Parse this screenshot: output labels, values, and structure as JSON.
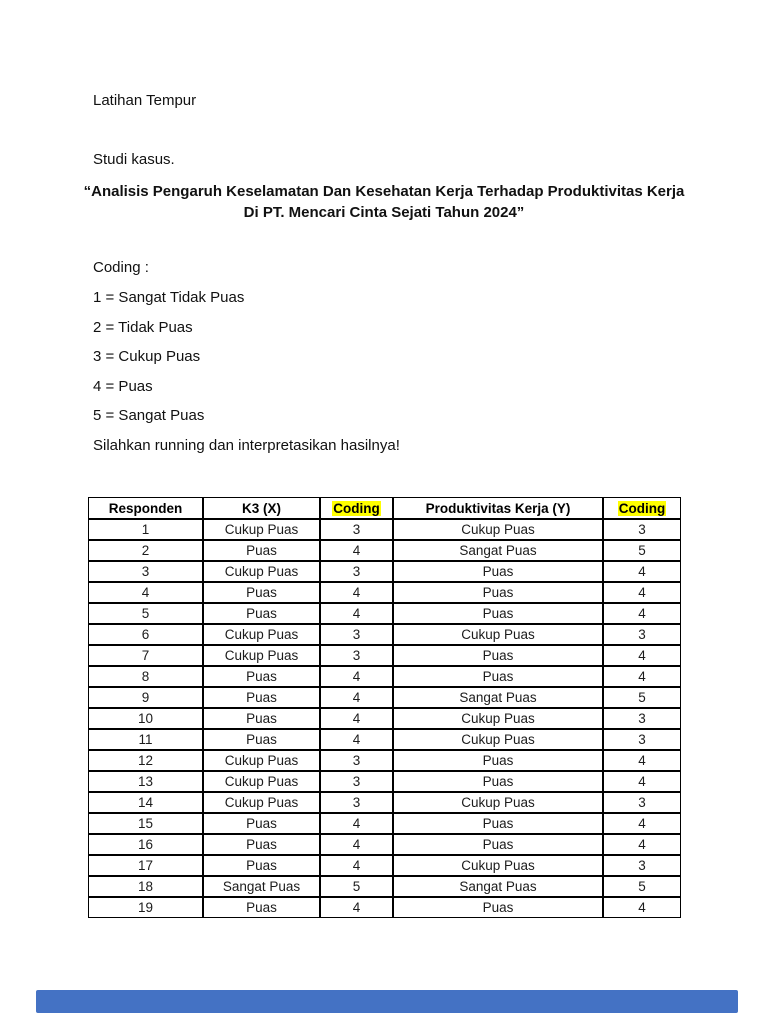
{
  "doc": {
    "heading": "Latihan Tempur",
    "case_study": "Studi kasus.",
    "title": "“Analisis Pengaruh Keselamatan Dan Kesehatan Kerja Terhadap Produktivitas Kerja Di PT. Mencari Cinta Sejati Tahun 2024”",
    "coding_label": "Coding :",
    "coding_items": [
      "1 = Sangat Tidak Puas",
      "2 = Tidak Puas",
      "3 = Cukup Puas",
      "4 = Puas",
      "5 = Sangat Puas"
    ],
    "instruction": "Silahkan running dan interpretasikan hasilnya!"
  },
  "table": {
    "headers": [
      {
        "label": "Responden",
        "highlight": false
      },
      {
        "label": "K3 (X)",
        "highlight": false
      },
      {
        "label": "Coding",
        "highlight": true
      },
      {
        "label": "Produktivitas Kerja (Y)",
        "highlight": false
      },
      {
        "label": "Coding",
        "highlight": true
      }
    ],
    "rows": [
      [
        "1",
        "Cukup Puas",
        "3",
        "Cukup Puas",
        "3"
      ],
      [
        "2",
        "Puas",
        "4",
        "Sangat Puas",
        "5"
      ],
      [
        "3",
        "Cukup Puas",
        "3",
        "Puas",
        "4"
      ],
      [
        "4",
        "Puas",
        "4",
        "Puas",
        "4"
      ],
      [
        "5",
        "Puas",
        "4",
        "Puas",
        "4"
      ],
      [
        "6",
        "Cukup Puas",
        "3",
        "Cukup Puas",
        "3"
      ],
      [
        "7",
        "Cukup Puas",
        "3",
        "Puas",
        "4"
      ],
      [
        "8",
        "Puas",
        "4",
        "Puas",
        "4"
      ],
      [
        "9",
        "Puas",
        "4",
        "Sangat Puas",
        "5"
      ],
      [
        "10",
        "Puas",
        "4",
        "Cukup Puas",
        "3"
      ],
      [
        "11",
        "Puas",
        "4",
        "Cukup Puas",
        "3"
      ],
      [
        "12",
        "Cukup Puas",
        "3",
        "Puas",
        "4"
      ],
      [
        "13",
        "Cukup Puas",
        "3",
        "Puas",
        "4"
      ],
      [
        "14",
        "Cukup Puas",
        "3",
        "Cukup Puas",
        "3"
      ],
      [
        "15",
        "Puas",
        "4",
        "Puas",
        "4"
      ],
      [
        "16",
        "Puas",
        "4",
        "Puas",
        "4"
      ],
      [
        "17",
        "Puas",
        "4",
        "Cukup Puas",
        "3"
      ],
      [
        "18",
        "Sangat Puas",
        "5",
        "Sangat Puas",
        "5"
      ],
      [
        "19",
        "Puas",
        "4",
        "Puas",
        "4"
      ]
    ]
  },
  "colors": {
    "header_highlight": "#ffff00",
    "bottom_strip_blue": "#4472c4",
    "text": "#111111",
    "table_border": "#000000"
  }
}
